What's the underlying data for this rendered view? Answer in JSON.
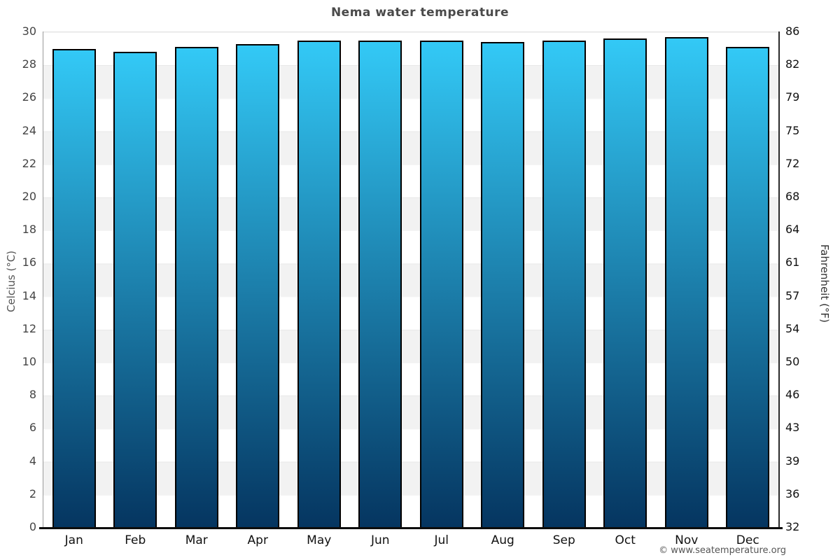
{
  "title": "Nema water temperature",
  "watermark": "© www.seatemperature.org",
  "chart_data": {
    "type": "bar",
    "title": "Nema water temperature",
    "categories": [
      "Jan",
      "Feb",
      "Mar",
      "Apr",
      "May",
      "Jun",
      "Jul",
      "Aug",
      "Sep",
      "Oct",
      "Nov",
      "Dec"
    ],
    "values": [
      29.0,
      28.8,
      29.1,
      29.3,
      29.5,
      29.5,
      29.5,
      29.4,
      29.5,
      29.6,
      29.7,
      29.1
    ],
    "ylabel_left": "Celcius (°C)",
    "ylabel_right": "Fahrenheit (°F)",
    "ylim_c": [
      0,
      30
    ],
    "yticks_c": [
      0,
      2,
      4,
      6,
      8,
      10,
      12,
      14,
      16,
      18,
      20,
      22,
      24,
      26,
      28,
      30
    ],
    "yticks_f": [
      32,
      36,
      39,
      43,
      46,
      50,
      54,
      57,
      61,
      64,
      68,
      72,
      75,
      79,
      82,
      86
    ],
    "grid": "horizontal-bands-every-2C",
    "legend": "none",
    "colors": {
      "bar_gradient_top": "#33c9f6",
      "bar_gradient_bottom": "#053560",
      "bar_border": "#000000",
      "band_light": "#ffffff",
      "band_gray": "#f2f2f2",
      "title_text": "#4a4a4a"
    }
  }
}
